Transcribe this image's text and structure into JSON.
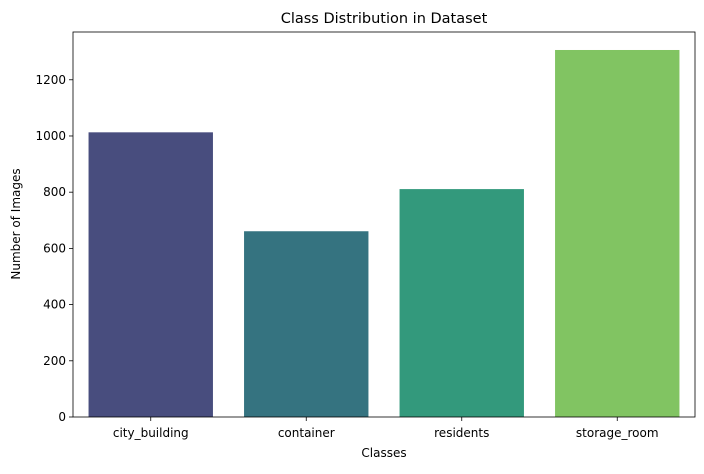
{
  "chart_data": {
    "type": "bar",
    "title": "Class Distribution in Dataset",
    "xlabel": "Classes",
    "ylabel": "Number of Images",
    "categories": [
      "city_building",
      "container",
      "residents",
      "storage_room"
    ],
    "values": [
      1013,
      661,
      811,
      1306
    ],
    "colors": [
      "#484d7e",
      "#357380",
      "#33997c",
      "#81c462"
    ],
    "ylim": [
      0,
      1370
    ],
    "yticks": [
      0,
      200,
      400,
      600,
      800,
      1000,
      1200
    ],
    "grid": false,
    "legend": "none"
  }
}
